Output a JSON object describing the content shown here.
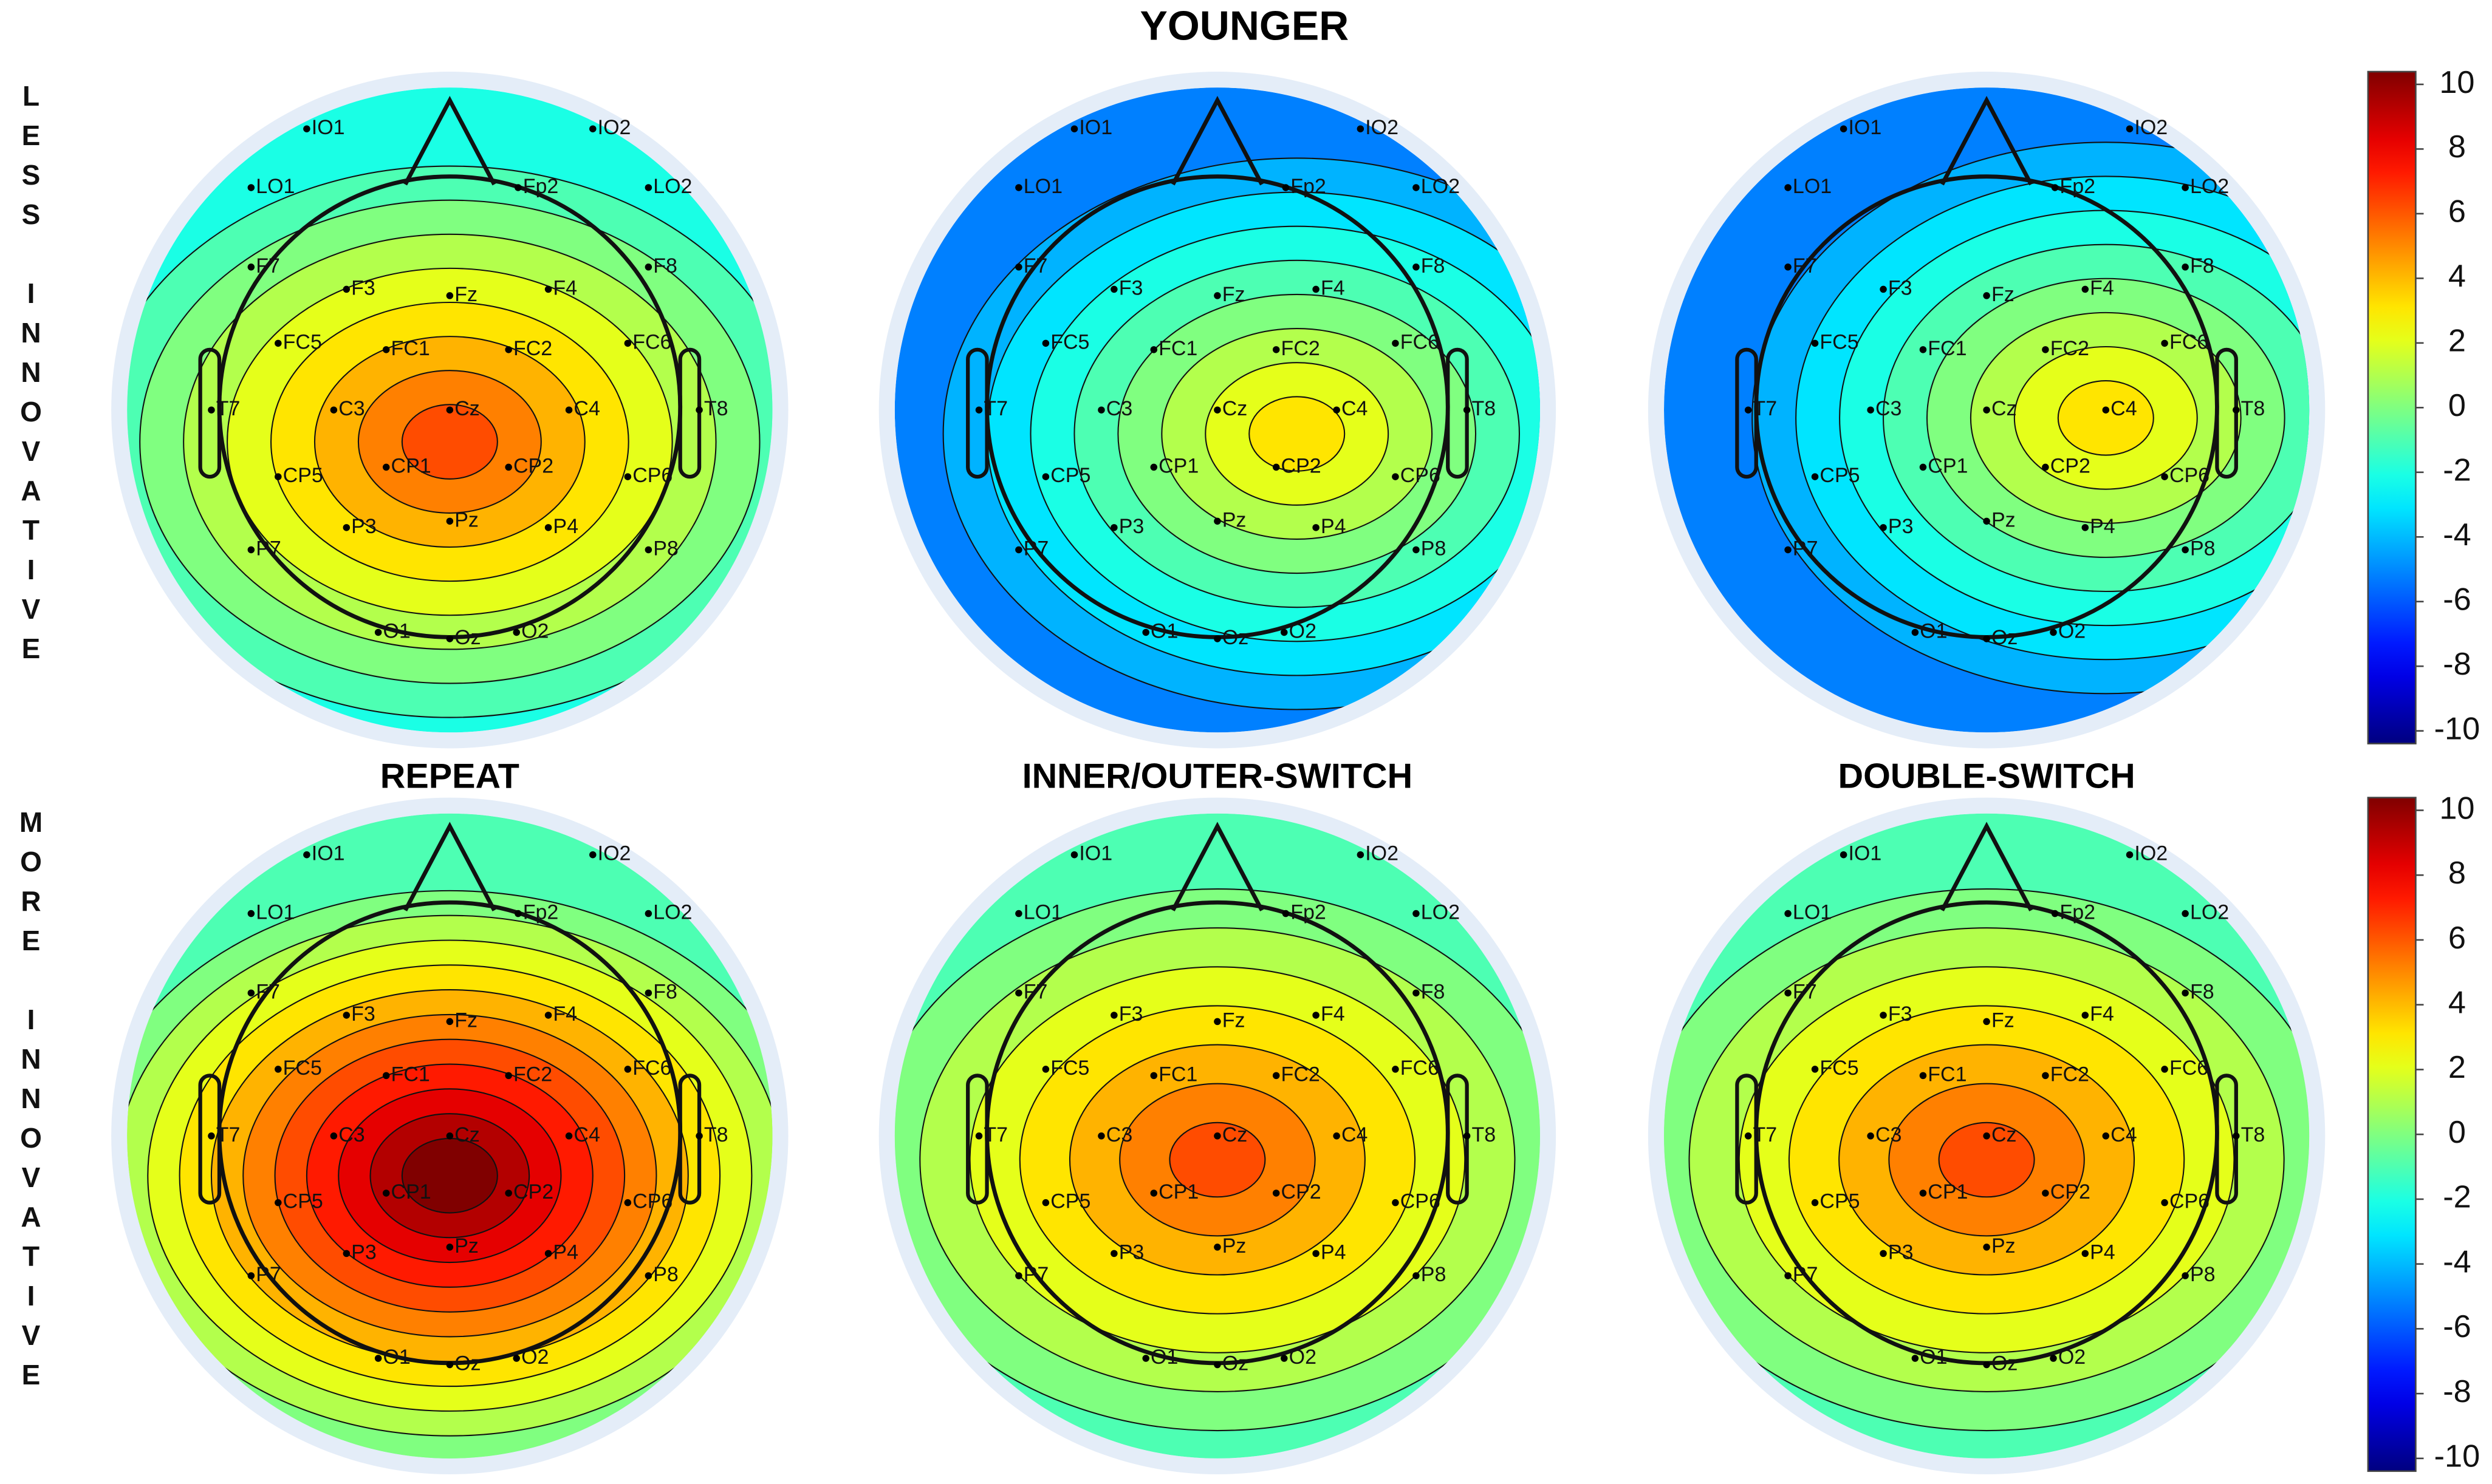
{
  "title": "YOUNGER",
  "row_labels": [
    "LESS INNOVATIVE",
    "MORE INNOVATIVE"
  ],
  "column_titles": [
    "REPEAT",
    "INNER/OUTER-SWITCH",
    "DOUBLE-SWITCH"
  ],
  "electrodes": [
    "IO1",
    "IO2",
    "LO1",
    "Fp2",
    "LO2",
    "F7",
    "F3",
    "Fz",
    "F4",
    "F8",
    "FC5",
    "FC1",
    "FC2",
    "FC6",
    "T7",
    "C3",
    "Cz",
    "C4",
    "T8",
    "CP5",
    "CP1",
    "CP2",
    "CP6",
    "P7",
    "P3",
    "Pz",
    "P4",
    "P8",
    "O1",
    "Oz",
    "O2"
  ],
  "colorbar": {
    "ylim": [
      -10,
      10
    ],
    "yticks": [
      10,
      8,
      6,
      4,
      2,
      0,
      -2,
      -4,
      -6,
      -8,
      -10
    ]
  }
}
